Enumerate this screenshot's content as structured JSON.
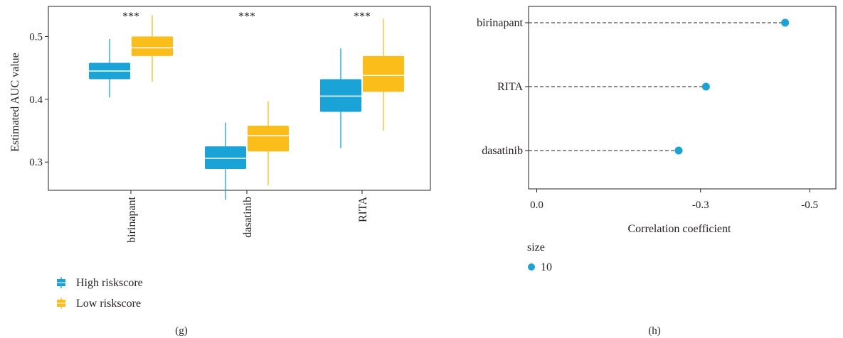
{
  "panel_g": {
    "caption": "(g)",
    "colors": {
      "high": "#1aa3d6",
      "low": "#fbbd1a",
      "median": "#ffffff"
    },
    "chart_data": {
      "type": "box",
      "ylabel": "Estimated AUC value",
      "xlabel": "",
      "ylim": [
        0.255,
        0.548
      ],
      "yticks": [
        0.3,
        0.4,
        0.5
      ],
      "categories": [
        "birinapant",
        "dasatinib",
        "RITA"
      ],
      "significance": [
        "***",
        "***",
        "***"
      ],
      "series": [
        {
          "name": "High riskscore",
          "boxes": [
            {
              "whisker_low": 0.403,
              "q1": 0.432,
              "median": 0.445,
              "q3": 0.458,
              "whisker_high": 0.496
            },
            {
              "whisker_low": 0.24,
              "q1": 0.289,
              "median": 0.306,
              "q3": 0.325,
              "whisker_high": 0.363
            },
            {
              "whisker_low": 0.322,
              "q1": 0.38,
              "median": 0.405,
              "q3": 0.432,
              "whisker_high": 0.481
            }
          ]
        },
        {
          "name": "Low riskscore",
          "boxes": [
            {
              "whisker_low": 0.428,
              "q1": 0.469,
              "median": 0.482,
              "q3": 0.5,
              "whisker_high": 0.534
            },
            {
              "whisker_low": 0.263,
              "q1": 0.317,
              "median": 0.342,
              "q3": 0.358,
              "whisker_high": 0.397
            },
            {
              "whisker_low": 0.35,
              "q1": 0.412,
              "median": 0.438,
              "q3": 0.469,
              "whisker_high": 0.528
            }
          ]
        }
      ],
      "legend_position": "bottom-left",
      "grid": false
    }
  },
  "panel_h": {
    "caption": "(h)",
    "colors": {
      "point": "#1aa3d6"
    },
    "chart_data": {
      "type": "lollipop",
      "xlabel": "Correlation coefficient",
      "ylabel": "",
      "xlim": [
        0.015,
        -0.548
      ],
      "xticks": [
        {
          "value": 0.0,
          "label": "0.0"
        },
        {
          "value": -0.3,
          "label": "-0.3"
        },
        {
          "value": -0.5,
          "label": "-0.5"
        }
      ],
      "categories": [
        "birinapant",
        "RITA",
        "dasatinib"
      ],
      "values": [
        -0.455,
        -0.31,
        -0.26
      ],
      "size_legend": {
        "title": "size",
        "entries": [
          "10"
        ]
      },
      "grid": false
    }
  }
}
